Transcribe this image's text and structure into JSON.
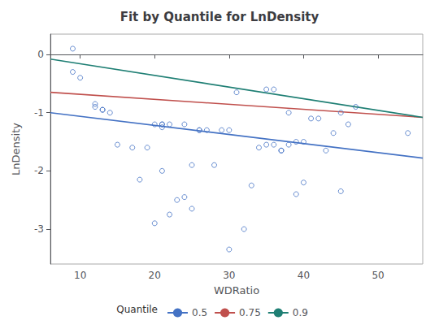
{
  "chart_data": {
    "type": "scatter",
    "title": "Fit by Quantile for LnDensity",
    "x_label": "WDRatio",
    "y_label": "LnDensity",
    "xlim": [
      6,
      56
    ],
    "ylim": [
      -3.6,
      0.35
    ],
    "xticks": [
      10,
      20,
      30,
      40,
      50
    ],
    "yticks": [
      -3,
      -2,
      -1,
      0
    ],
    "grid": false,
    "legend": "bottom",
    "legend_title": "Quantile",
    "series": [
      {
        "type": "scatter",
        "marker": "circle",
        "color": "#4472C4",
        "x": [
          9,
          9,
          10,
          12,
          12,
          13,
          13,
          14,
          15,
          17,
          18,
          19,
          20,
          20,
          21,
          21,
          21,
          21,
          22,
          22,
          23,
          24,
          24,
          25,
          25,
          26,
          26,
          27,
          28,
          29,
          30,
          30,
          31,
          32,
          33,
          34,
          35,
          35,
          36,
          36,
          37,
          37,
          38,
          38,
          39,
          39,
          40,
          40,
          41,
          42,
          43,
          44,
          45,
          45,
          46,
          47,
          54
        ],
        "values": [
          0.1,
          -0.3,
          -0.4,
          -0.9,
          -0.85,
          -0.95,
          -0.95,
          -1.0,
          -1.55,
          -1.6,
          -2.15,
          -1.6,
          -1.2,
          -2.9,
          -1.2,
          -1.2,
          -1.25,
          -2.0,
          -1.2,
          -2.75,
          -2.5,
          -2.45,
          -1.2,
          -1.9,
          -2.65,
          -1.3,
          -1.3,
          -1.3,
          -1.9,
          -1.3,
          -3.35,
          -1.3,
          -0.65,
          -3.0,
          -2.25,
          -1.6,
          -0.6,
          -1.55,
          -0.6,
          -1.55,
          -1.65,
          -1.65,
          -1.0,
          -1.55,
          -2.4,
          -1.5,
          -1.5,
          -2.2,
          -1.1,
          -1.1,
          -1.65,
          -1.35,
          -2.35,
          -1.0,
          -1.2,
          -0.9,
          -1.35
        ]
      },
      {
        "name": "0.5",
        "type": "line",
        "color": "#4472C4",
        "x": [
          6,
          56
        ],
        "values": [
          -1.0,
          -1.78
        ]
      },
      {
        "name": "0.75",
        "type": "line",
        "color": "#C0504D",
        "x": [
          6,
          56
        ],
        "values": [
          -0.65,
          -1.08
        ]
      },
      {
        "name": "0.9",
        "type": "line",
        "color": "#1F7F74",
        "x": [
          6,
          56
        ],
        "values": [
          -0.08,
          -1.08
        ]
      }
    ]
  }
}
